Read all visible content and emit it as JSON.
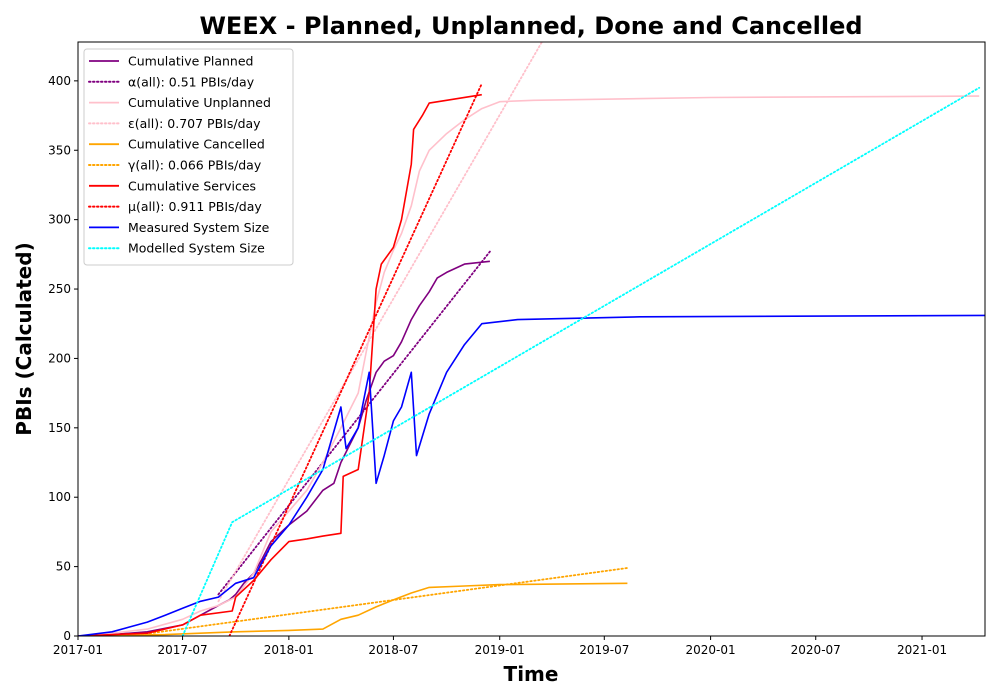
{
  "chart_data": {
    "type": "line",
    "title": "WEEX - Planned, Unplanned, Done  and Cancelled",
    "xlabel": "Time",
    "ylabel": "PBIs (Calculated)",
    "x_ticks": [
      "2017-01",
      "2017-07",
      "2018-01",
      "2018-07",
      "2019-01",
      "2019-07",
      "2020-01",
      "2020-07",
      "2021-01"
    ],
    "y_ticks": [
      0,
      50,
      100,
      150,
      200,
      250,
      300,
      350,
      400
    ],
    "xlim": [
      "2017-01-01",
      "2021-04-20"
    ],
    "ylim": [
      0,
      428
    ],
    "grid": false,
    "legend_position": "top-left",
    "series": [
      {
        "name": "Cumulative Planned",
        "color": "#800080",
        "style": "solid",
        "points": [
          [
            "2017-01-01",
            0
          ],
          [
            "2017-03-01",
            1
          ],
          [
            "2017-05-01",
            3
          ],
          [
            "2017-07-01",
            8
          ],
          [
            "2017-08-01",
            15
          ],
          [
            "2017-09-01",
            22
          ],
          [
            "2017-09-20",
            26
          ],
          [
            "2017-10-01",
            30
          ],
          [
            "2017-10-15",
            38
          ],
          [
            "2017-11-01",
            45
          ],
          [
            "2017-11-15",
            55
          ],
          [
            "2017-12-01",
            68
          ],
          [
            "2018-01-01",
            80
          ],
          [
            "2018-02-01",
            90
          ],
          [
            "2018-03-01",
            105
          ],
          [
            "2018-03-20",
            110
          ],
          [
            "2018-04-01",
            125
          ],
          [
            "2018-05-01",
            150
          ],
          [
            "2018-05-15",
            170
          ],
          [
            "2018-06-01",
            190
          ],
          [
            "2018-06-15",
            198
          ],
          [
            "2018-07-01",
            202
          ],
          [
            "2018-07-15",
            212
          ],
          [
            "2018-08-01",
            228
          ],
          [
            "2018-08-15",
            238
          ],
          [
            "2018-09-01",
            248
          ],
          [
            "2018-09-15",
            258
          ],
          [
            "2018-10-01",
            262
          ],
          [
            "2018-11-01",
            268
          ],
          [
            "2018-12-15",
            270
          ]
        ]
      },
      {
        "name": "α(all): 0.51 PBIs/day",
        "color": "#800080",
        "style": "dotted",
        "points": [
          [
            "2017-09-01",
            30
          ],
          [
            "2018-12-15",
            277
          ]
        ]
      },
      {
        "name": "Cumulative Unplanned",
        "color": "#ffc0cb",
        "style": "solid",
        "points": [
          [
            "2017-01-01",
            0
          ],
          [
            "2017-03-01",
            2
          ],
          [
            "2017-05-01",
            5
          ],
          [
            "2017-07-01",
            12
          ],
          [
            "2017-08-01",
            18
          ],
          [
            "2017-09-01",
            22
          ],
          [
            "2017-10-01",
            28
          ],
          [
            "2017-11-01",
            45
          ],
          [
            "2017-12-01",
            75
          ],
          [
            "2018-01-01",
            90
          ],
          [
            "2018-02-01",
            105
          ],
          [
            "2018-03-01",
            125
          ],
          [
            "2018-04-01",
            150
          ],
          [
            "2018-05-01",
            175
          ],
          [
            "2018-05-15",
            205
          ],
          [
            "2018-06-01",
            240
          ],
          [
            "2018-06-15",
            262
          ],
          [
            "2018-07-01",
            278
          ],
          [
            "2018-07-15",
            290
          ],
          [
            "2018-08-01",
            310
          ],
          [
            "2018-08-15",
            335
          ],
          [
            "2018-09-01",
            350
          ],
          [
            "2018-10-01",
            362
          ],
          [
            "2018-11-01",
            372
          ],
          [
            "2018-12-01",
            380
          ],
          [
            "2019-01-01",
            385
          ],
          [
            "2019-03-01",
            386
          ],
          [
            "2020-01-01",
            388
          ],
          [
            "2021-04-10",
            389
          ]
        ]
      },
      {
        "name": "ε(all): 0.707 PBIs/day",
        "color": "#ffc0cb",
        "style": "dotted",
        "points": [
          [
            "2017-09-01",
            25
          ],
          [
            "2019-03-15",
            428
          ]
        ]
      },
      {
        "name": "Cumulative Cancelled",
        "color": "#ffa500",
        "style": "solid",
        "points": [
          [
            "2017-01-01",
            0
          ],
          [
            "2017-06-01",
            1
          ],
          [
            "2017-10-01",
            3
          ],
          [
            "2018-01-01",
            4
          ],
          [
            "2018-03-01",
            5
          ],
          [
            "2018-04-01",
            12
          ],
          [
            "2018-05-01",
            15
          ],
          [
            "2018-06-01",
            21
          ],
          [
            "2018-07-01",
            26
          ],
          [
            "2018-08-01",
            31
          ],
          [
            "2018-09-01",
            35
          ],
          [
            "2018-11-01",
            36
          ],
          [
            "2019-01-01",
            37
          ],
          [
            "2019-08-10",
            38
          ]
        ]
      },
      {
        "name": "γ(all): 0.066 PBIs/day",
        "color": "#ffa500",
        "style": "dotted",
        "points": [
          [
            "2017-04-01",
            0
          ],
          [
            "2019-08-10",
            49
          ]
        ]
      },
      {
        "name": "Cumulative Services",
        "color": "#ff0000",
        "style": "solid",
        "points": [
          [
            "2017-01-01",
            0
          ],
          [
            "2017-05-01",
            2
          ],
          [
            "2017-07-01",
            8
          ],
          [
            "2017-08-01",
            15
          ],
          [
            "2017-09-25",
            18
          ],
          [
            "2017-10-01",
            28
          ],
          [
            "2017-11-01",
            40
          ],
          [
            "2017-12-01",
            55
          ],
          [
            "2018-01-01",
            68
          ],
          [
            "2018-02-01",
            70
          ],
          [
            "2018-03-01",
            72
          ],
          [
            "2018-04-01",
            74
          ],
          [
            "2018-04-05",
            115
          ],
          [
            "2018-05-01",
            120
          ],
          [
            "2018-05-20",
            175
          ],
          [
            "2018-06-01",
            250
          ],
          [
            "2018-06-10",
            268
          ],
          [
            "2018-07-01",
            280
          ],
          [
            "2018-07-15",
            300
          ],
          [
            "2018-08-01",
            340
          ],
          [
            "2018-08-05",
            365
          ],
          [
            "2018-08-20",
            375
          ],
          [
            "2018-09-01",
            384
          ],
          [
            "2018-10-01",
            386
          ],
          [
            "2018-12-01",
            390
          ]
        ]
      },
      {
        "name": "μ(all): 0.911 PBIs/day",
        "color": "#ff0000",
        "style": "dotted",
        "points": [
          [
            "2017-09-20",
            0
          ],
          [
            "2018-12-01",
            398
          ]
        ]
      },
      {
        "name": "Measured System Size",
        "color": "#0000ff",
        "style": "solid",
        "points": [
          [
            "2017-01-01",
            0
          ],
          [
            "2017-03-01",
            3
          ],
          [
            "2017-05-01",
            10
          ],
          [
            "2017-06-01",
            15
          ],
          [
            "2017-07-01",
            20
          ],
          [
            "2017-08-01",
            25
          ],
          [
            "2017-09-01",
            28
          ],
          [
            "2017-10-01",
            38
          ],
          [
            "2017-11-01",
            42
          ],
          [
            "2017-12-01",
            65
          ],
          [
            "2018-01-01",
            80
          ],
          [
            "2018-02-01",
            100
          ],
          [
            "2018-03-01",
            120
          ],
          [
            "2018-04-01",
            165
          ],
          [
            "2018-04-10",
            135
          ],
          [
            "2018-05-01",
            150
          ],
          [
            "2018-05-20",
            190
          ],
          [
            "2018-06-01",
            110
          ],
          [
            "2018-06-15",
            130
          ],
          [
            "2018-07-01",
            155
          ],
          [
            "2018-07-15",
            165
          ],
          [
            "2018-08-01",
            190
          ],
          [
            "2018-08-10",
            130
          ],
          [
            "2018-09-01",
            160
          ],
          [
            "2018-10-01",
            190
          ],
          [
            "2018-11-01",
            210
          ],
          [
            "2018-12-01",
            225
          ],
          [
            "2019-02-01",
            228
          ],
          [
            "2019-09-01",
            230
          ],
          [
            "2021-04-20",
            231
          ]
        ]
      },
      {
        "name": "Modelled System Size",
        "color": "#00ffff",
        "style": "dotted",
        "points": [
          [
            "2017-07-01",
            0
          ],
          [
            "2017-09-25",
            82
          ],
          [
            "2021-04-10",
            395
          ]
        ]
      }
    ]
  }
}
